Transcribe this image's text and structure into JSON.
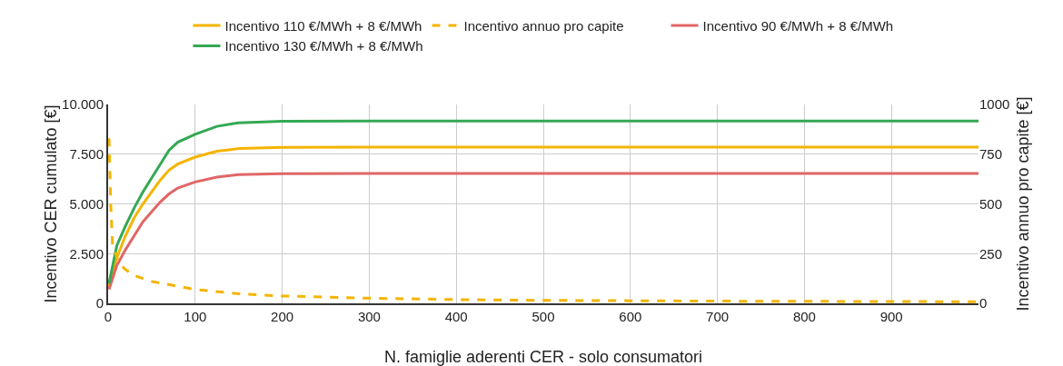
{
  "chart_data": {
    "type": "line",
    "xlabel": "N. famiglie aderenti CER - solo consumatori",
    "ylabel": "Incentivo CER cumulato [€]",
    "y2label": "Incentivo annuo pro capite [€]",
    "x": [
      1,
      10,
      20,
      30,
      40,
      50,
      60,
      70,
      80,
      100,
      125,
      150,
      200,
      300,
      500,
      700,
      1000
    ],
    "series": [
      {
        "name": "Incentivo 110 €/MWh + 8 €/MWh",
        "color": "#f4b400",
        "values": [
          850,
          2300,
          3400,
          4300,
          5000,
          5600,
          6200,
          6700,
          7000,
          7350,
          7650,
          7780,
          7840,
          7850,
          7850,
          7850,
          7850
        ]
      },
      {
        "name": "Incentivo annuo pro capite",
        "color": "#f4b400",
        "axis": "y2",
        "line_style": "dashed",
        "x": [
          1,
          3,
          5,
          10,
          15,
          20,
          30,
          50,
          75,
          100,
          150,
          200,
          300,
          400,
          500,
          600,
          700,
          800,
          900,
          1000
        ],
        "values": [
          830,
          500,
          300,
          230,
          190,
          170,
          140,
          110,
          90,
          70,
          48,
          37,
          26,
          19,
          15,
          13,
          11,
          10,
          9,
          8
        ]
      },
      {
        "name": "Incentivo 90 €/MWh + 8 €/MWh",
        "color": "#e06666",
        "values": [
          700,
          1900,
          2700,
          3400,
          4100,
          4600,
          5100,
          5500,
          5800,
          6100,
          6350,
          6470,
          6520,
          6530,
          6530,
          6530,
          6530
        ]
      },
      {
        "name": "Incentivo 130 €/MWh + 8 €/MWh",
        "color": "#34a853",
        "values": [
          1000,
          2900,
          3900,
          4800,
          5600,
          6300,
          7000,
          7700,
          8100,
          8500,
          8900,
          9080,
          9160,
          9170,
          9170,
          9170,
          9170
        ]
      }
    ],
    "xlim": [
      0,
      1000
    ],
    "xticks": [
      0,
      100,
      200,
      300,
      400,
      500,
      600,
      700,
      800,
      900
    ],
    "ylim": [
      0,
      10000
    ],
    "yticks": [
      {
        "value": 0,
        "label": "0"
      },
      {
        "value": 2500,
        "label": "2.500"
      },
      {
        "value": 5000,
        "label": "5.000"
      },
      {
        "value": 7500,
        "label": "7.500"
      },
      {
        "value": 10000,
        "label": "10.000"
      }
    ],
    "y2lim": [
      0,
      1000
    ],
    "y2ticks": [
      0,
      250,
      500,
      750,
      1000
    ],
    "grid": true,
    "legend": "top",
    "marker": "none",
    "line_style": "solid"
  }
}
